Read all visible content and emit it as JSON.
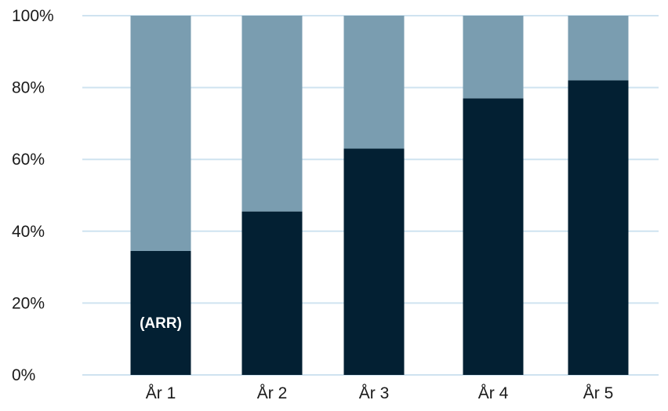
{
  "chart_data": {
    "type": "bar",
    "stacked": true,
    "categories": [
      "År 1",
      "År 2",
      "År 3",
      "År 4",
      "År 5"
    ],
    "series": [
      {
        "values": [
          34.5,
          45.5,
          63,
          77,
          82
        ],
        "color": "#032033"
      },
      {
        "values": [
          65.5,
          54.5,
          37,
          23,
          18
        ],
        "color": "#7a9db0"
      }
    ],
    "ylim": [
      0,
      100
    ],
    "yticks": [
      0,
      20,
      40,
      60,
      80,
      100
    ],
    "ytick_format": "{v}%",
    "grid": true,
    "grid_color": "#cfe3f0",
    "annotations": [
      {
        "category": "År 1",
        "series": 0,
        "text": "(ARR)"
      }
    ]
  }
}
